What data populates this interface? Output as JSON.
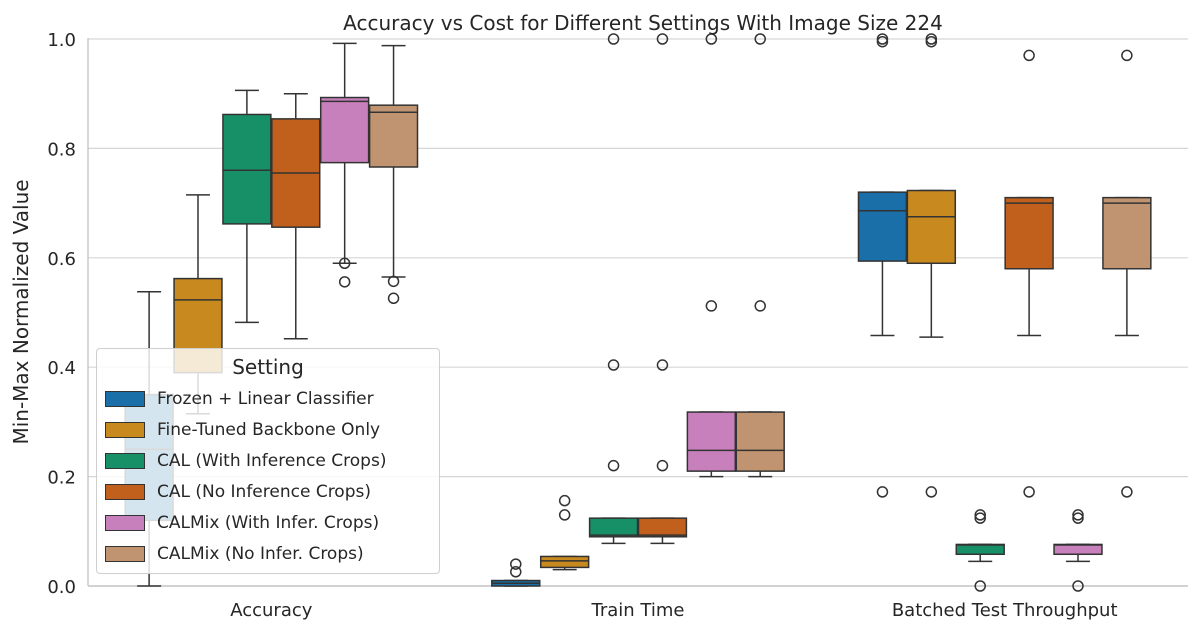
{
  "chart_data": {
    "type": "box",
    "title": "Accuracy vs Cost for Different Settings With Image Size 224",
    "ylabel": "Min-Max Normalized Value",
    "xlabel": "",
    "ylim": [
      0,
      1.0
    ],
    "yticks": [
      0.0,
      0.2,
      0.4,
      0.6,
      0.8,
      1.0
    ],
    "ytick_labels": [
      "0.0",
      "0.2",
      "0.4",
      "0.6",
      "0.8",
      "1.0"
    ],
    "grid": "horizontal",
    "categories": [
      "Accuracy",
      "Train Time",
      "Batched Test Throughput"
    ],
    "legend": {
      "title": "Setting",
      "position": "lower-left"
    },
    "series": [
      {
        "name": "Frozen + Linear Classifier",
        "color": "#1a6fa8",
        "boxes": [
          {
            "category": "Accuracy",
            "whislo": 0.0,
            "q1": 0.12,
            "med": 0.25,
            "q3": 0.35,
            "whishi": 0.538,
            "fliers": []
          },
          {
            "category": "Train Time",
            "whislo": 0.0,
            "q1": 0.0,
            "med": 0.005,
            "q3": 0.01,
            "whishi": 0.01,
            "fliers": [
              0.026,
              0.04
            ]
          },
          {
            "category": "Batched Test Throughput",
            "whislo": 0.458,
            "q1": 0.594,
            "med": 0.686,
            "q3": 0.72,
            "whishi": 0.72,
            "fliers": [
              0.172,
              0.995,
              1.0
            ]
          }
        ]
      },
      {
        "name": "Fine-Tuned Backbone Only",
        "color": "#c88a1e",
        "boxes": [
          {
            "category": "Accuracy",
            "whislo": 0.315,
            "q1": 0.39,
            "med": 0.523,
            "q3": 0.562,
            "whishi": 0.715,
            "fliers": []
          },
          {
            "category": "Train Time",
            "whislo": 0.03,
            "q1": 0.034,
            "med": 0.046,
            "q3": 0.054,
            "whishi": 0.054,
            "fliers": [
              0.13,
              0.156
            ]
          },
          {
            "category": "Batched Test Throughput",
            "whislo": 0.455,
            "q1": 0.59,
            "med": 0.675,
            "q3": 0.723,
            "whishi": 0.723,
            "fliers": [
              0.172,
              0.995,
              1.0
            ]
          }
        ]
      },
      {
        "name": "CAL (With Inference Crops)",
        "color": "#179068",
        "boxes": [
          {
            "category": "Accuracy",
            "whislo": 0.482,
            "q1": 0.662,
            "med": 0.76,
            "q3": 0.862,
            "whishi": 0.906,
            "fliers": []
          },
          {
            "category": "Train Time",
            "whislo": 0.078,
            "q1": 0.09,
            "med": 0.093,
            "q3": 0.124,
            "whishi": 0.124,
            "fliers": [
              0.22,
              0.404,
              1.0
            ]
          },
          {
            "category": "Batched Test Throughput",
            "whislo": 0.045,
            "q1": 0.058,
            "med": 0.075,
            "q3": 0.076,
            "whishi": 0.076,
            "fliers": [
              0.0,
              0.124,
              0.13
            ]
          }
        ]
      },
      {
        "name": "CAL (No Inference Crops)",
        "color": "#c0601c",
        "boxes": [
          {
            "category": "Accuracy",
            "whislo": 0.452,
            "q1": 0.656,
            "med": 0.755,
            "q3": 0.854,
            "whishi": 0.9,
            "fliers": []
          },
          {
            "category": "Train Time",
            "whislo": 0.078,
            "q1": 0.09,
            "med": 0.093,
            "q3": 0.124,
            "whishi": 0.124,
            "fliers": [
              0.22,
              0.404,
              1.0
            ]
          },
          {
            "category": "Batched Test Throughput",
            "whislo": 0.458,
            "q1": 0.58,
            "med": 0.7,
            "q3": 0.71,
            "whishi": 0.71,
            "fliers": [
              0.172,
              0.97
            ]
          }
        ]
      },
      {
        "name": "CALMix (With Infer. Crops)",
        "color": "#c880bc",
        "boxes": [
          {
            "category": "Accuracy",
            "whislo": 0.59,
            "q1": 0.774,
            "med": 0.886,
            "q3": 0.893,
            "whishi": 0.992,
            "fliers": [
              0.556,
              0.59
            ]
          },
          {
            "category": "Train Time",
            "whislo": 0.2,
            "q1": 0.21,
            "med": 0.248,
            "q3": 0.318,
            "whishi": 0.318,
            "fliers": [
              0.512,
              1.0
            ]
          },
          {
            "category": "Batched Test Throughput",
            "whislo": 0.045,
            "q1": 0.058,
            "med": 0.075,
            "q3": 0.076,
            "whishi": 0.076,
            "fliers": [
              0.0,
              0.124,
              0.13
            ]
          }
        ]
      },
      {
        "name": "CALMix (No Infer. Crops)",
        "color": "#c09470",
        "boxes": [
          {
            "category": "Accuracy",
            "whislo": 0.565,
            "q1": 0.766,
            "med": 0.866,
            "q3": 0.879,
            "whishi": 0.988,
            "fliers": [
              0.526,
              0.557
            ]
          },
          {
            "category": "Train Time",
            "whislo": 0.2,
            "q1": 0.21,
            "med": 0.248,
            "q3": 0.318,
            "whishi": 0.318,
            "fliers": [
              0.512,
              1.0
            ]
          },
          {
            "category": "Batched Test Throughput",
            "whislo": 0.458,
            "q1": 0.58,
            "med": 0.7,
            "q3": 0.71,
            "whishi": 0.71,
            "fliers": [
              0.172,
              0.97
            ]
          }
        ]
      }
    ]
  }
}
